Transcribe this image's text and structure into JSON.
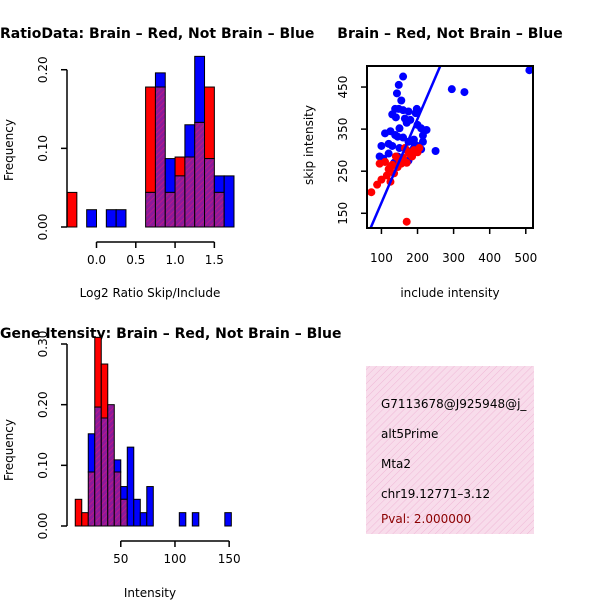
{
  "colors": {
    "red": "#ff0000",
    "blue": "#0000ff",
    "overlap": "#8b1a9a",
    "overlap_hatch": "#c71585",
    "info_bg": "#f8dceb",
    "info_hatch": "#efb7d6",
    "pval": "#8b0000"
  },
  "chart_data": [
    {
      "id": "ratio_hist",
      "type": "bar",
      "title": "RatioData: Brain – Red, Not Brain – Blue",
      "xlabel": "Log2 Ratio Skip/Include",
      "ylabel": "Frequency",
      "xlim": [
        -0.35,
        1.75
      ],
      "ylim": [
        0,
        0.22
      ],
      "xticks": [
        0.0,
        0.5,
        1.0,
        1.5
      ],
      "xtick_labels": [
        "0.0",
        "0.5",
        "1.0",
        "1.5"
      ],
      "yticks": [
        0.0,
        0.1,
        0.2
      ],
      "ytick_labels": [
        "0.00",
        "0.10",
        "0.20"
      ],
      "bin_width": 0.125,
      "bins_start": [
        -0.375,
        -0.25,
        -0.125,
        0.0,
        0.125,
        0.25,
        0.375,
        0.5,
        0.625,
        0.75,
        0.875,
        1.0,
        1.125,
        1.25,
        1.375,
        1.5,
        1.625
      ],
      "series": [
        {
          "name": "Brain",
          "color": "red",
          "values": [
            0.044,
            0.0,
            0.0,
            0.0,
            0.0,
            0.0,
            0.0,
            0.0,
            0.178,
            0.178,
            0.044,
            0.089,
            0.089,
            0.133,
            0.178,
            0.044,
            0.0
          ]
        },
        {
          "name": "Not Brain",
          "color": "blue",
          "values": [
            0.0,
            0.0,
            0.022,
            0.0,
            0.022,
            0.022,
            0.0,
            0.0,
            0.044,
            0.196,
            0.087,
            0.065,
            0.13,
            0.217,
            0.087,
            0.065,
            0.065
          ]
        }
      ]
    },
    {
      "id": "scatter",
      "type": "scatter",
      "title": "Brain – Red, Not Brain – Blue",
      "xlabel": "include intensity",
      "ylabel": "skip intensity",
      "xlim": [
        60,
        520
      ],
      "ylim": [
        115,
        500
      ],
      "xticks": [
        100,
        200,
        300,
        400,
        500
      ],
      "yticks": [
        150,
        250,
        350,
        450
      ],
      "fit_line": {
        "x": [
          70,
          263
        ],
        "y": [
          115,
          500
        ]
      },
      "series": [
        {
          "name": "Not Brain",
          "color": "blue",
          "points": [
            [
              510,
              490
            ],
            [
              295,
              445
            ],
            [
              330,
              438
            ],
            [
              160,
              475
            ],
            [
              148,
              455
            ],
            [
              143,
              435
            ],
            [
              155,
              418
            ],
            [
              138,
              398
            ],
            [
              148,
              398
            ],
            [
              160,
              395
            ],
            [
              175,
              392
            ],
            [
              195,
              388
            ],
            [
              198,
              398
            ],
            [
              130,
              385
            ],
            [
              140,
              378
            ],
            [
              165,
              375
            ],
            [
              180,
              372
            ],
            [
              170,
              365
            ],
            [
              200,
              360
            ],
            [
              210,
              352
            ],
            [
              225,
              348
            ],
            [
              150,
              352
            ],
            [
              125,
              345
            ],
            [
              110,
              340
            ],
            [
              138,
              336
            ],
            [
              145,
              332
            ],
            [
              160,
              330
            ],
            [
              190,
              325
            ],
            [
              215,
              335
            ],
            [
              175,
              320
            ],
            [
              190,
              318
            ],
            [
              120,
              315
            ],
            [
              130,
              310
            ],
            [
              150,
              305
            ],
            [
              170,
              300
            ],
            [
              190,
              305
            ],
            [
              200,
              310
            ],
            [
              210,
              302
            ],
            [
              100,
              310
            ],
            [
              95,
              285
            ],
            [
              120,
              292
            ],
            [
              145,
              285
            ],
            [
              160,
              280
            ],
            [
              175,
              275
            ],
            [
              250,
              298
            ],
            [
              105,
              280
            ],
            [
              215,
              320
            ],
            [
              135,
              270
            ]
          ]
        },
        {
          "name": "Brain",
          "color": "red",
          "points": [
            [
              72,
              200
            ],
            [
              88,
              218
            ],
            [
              100,
              230
            ],
            [
              95,
              268
            ],
            [
              110,
              272
            ],
            [
              120,
              255
            ],
            [
              125,
              260
            ],
            [
              130,
              265
            ],
            [
              140,
              285
            ],
            [
              150,
              275
            ],
            [
              155,
              268
            ],
            [
              160,
              282
            ],
            [
              170,
              270
            ],
            [
              180,
              290
            ],
            [
              185,
              285
            ],
            [
              190,
              300
            ],
            [
              200,
              295
            ],
            [
              115,
              240
            ],
            [
              135,
              245
            ],
            [
              125,
              225
            ],
            [
              205,
              305
            ],
            [
              165,
              305
            ],
            [
              175,
              295
            ],
            [
              145,
              260
            ],
            [
              170,
              130
            ]
          ]
        }
      ]
    },
    {
      "id": "intensity_hist",
      "type": "bar",
      "title": "Gene Itensity: Brain – Red, Not Brain – Blue",
      "xlabel": "Intensity",
      "ylabel": "Frequency",
      "xlim": [
        5,
        160
      ],
      "ylim": [
        0,
        0.3
      ],
      "xticks": [
        50,
        100,
        150
      ],
      "xtick_labels": [
        "50",
        "100",
        "150"
      ],
      "yticks": [
        0.0,
        0.1,
        0.2,
        0.3
      ],
      "ytick_labels": [
        "0.00",
        "0.10",
        "0.20",
        "0.30"
      ],
      "bin_width": 6,
      "bins_start": [
        8,
        14,
        20,
        26,
        32,
        38,
        44,
        50,
        56,
        62,
        68,
        74,
        80,
        86,
        92,
        98,
        104,
        110,
        116,
        122,
        128,
        134,
        140,
        146,
        152
      ],
      "series": [
        {
          "name": "Brain",
          "color": "red",
          "values": [
            0.044,
            0.022,
            0.089,
            0.311,
            0.267,
            0.2,
            0.089,
            0.044,
            0.0,
            0.0,
            0.0,
            0.0,
            0.0,
            0.0,
            0.0,
            0.0,
            0.0,
            0.0,
            0.0,
            0.0,
            0.0,
            0.0,
            0.0,
            0.0,
            0.0
          ]
        },
        {
          "name": "Not Brain",
          "color": "blue",
          "values": [
            0.0,
            0.0,
            0.152,
            0.196,
            0.178,
            0.2,
            0.109,
            0.065,
            0.13,
            0.044,
            0.022,
            0.065,
            0.0,
            0.0,
            0.0,
            0.0,
            0.022,
            0.0,
            0.022,
            0.0,
            0.0,
            0.0,
            0.0,
            0.022,
            0.0
          ]
        }
      ]
    }
  ],
  "info": {
    "id_line": "G7113678@J925948@j_",
    "event_type": "alt5Prime",
    "gene": "Mta2",
    "location": "chr19.12771–3.12",
    "pval": "Pval: 2.000000"
  }
}
